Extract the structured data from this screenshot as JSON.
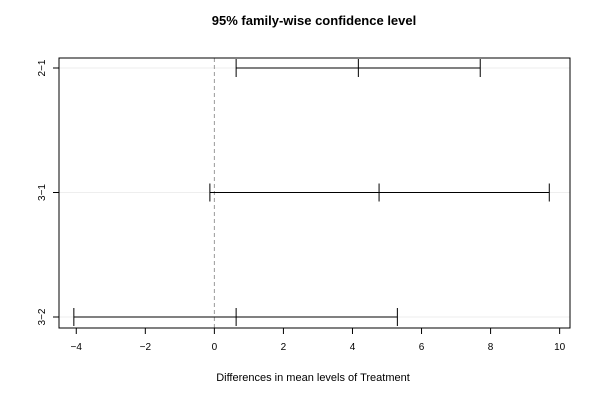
{
  "chart_data": {
    "type": "errorbar",
    "title": "95% family-wise confidence level",
    "xlabel": "Differences in mean levels of Treatment",
    "ylabel": "",
    "xlim": [
      -4.5,
      10.3
    ],
    "xticks": [
      -4,
      -2,
      0,
      2,
      4,
      6,
      8,
      10
    ],
    "xtick_labels": [
      "−4",
      "−2",
      "0",
      "2",
      "4",
      "6",
      "8",
      "10"
    ],
    "reference_line": 0,
    "comparisons": [
      {
        "label": "2−1",
        "lwr": 0.63,
        "diff": 4.17,
        "upr": 7.7
      },
      {
        "label": "3−1",
        "lwr": -0.13,
        "diff": 4.77,
        "upr": 9.7
      },
      {
        "label": "3−2",
        "lwr": -4.07,
        "diff": 0.63,
        "upr": 5.3
      }
    ]
  }
}
